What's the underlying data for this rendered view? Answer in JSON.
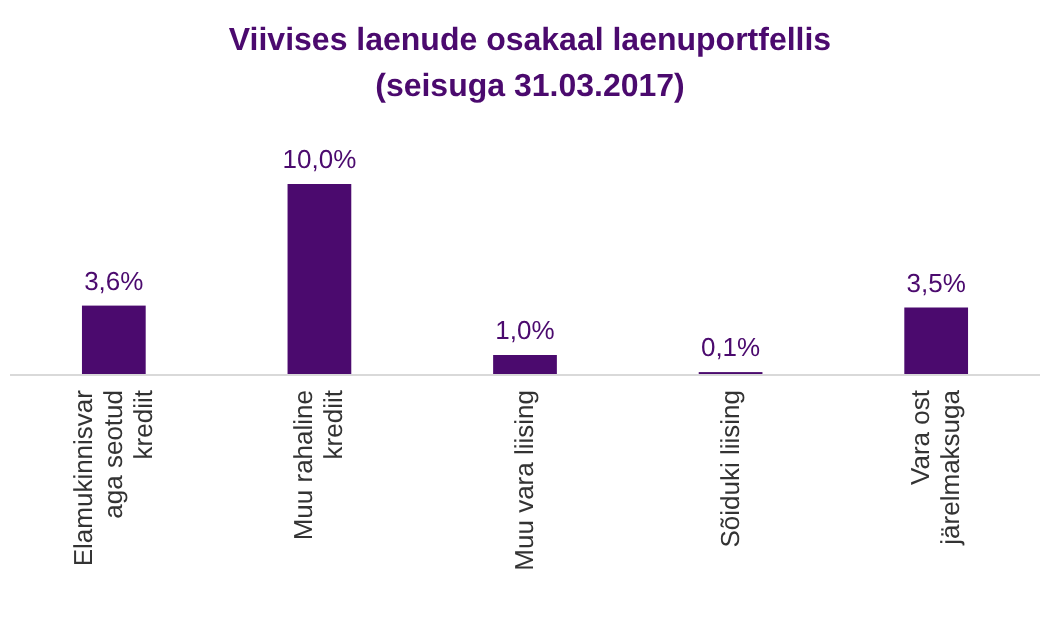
{
  "chart_data": {
    "type": "bar",
    "title": "Viivises laenude osakaal laenuportfellis",
    "subtitle": "(seisuga 31.03.2017)",
    "categories": [
      "Elamukinnisvaraga seotud krediit",
      "Muu rahaline krediit",
      "Muu vara liising",
      "Sõiduki liising",
      "Vara ost järelmaksuga"
    ],
    "values": [
      3.6,
      10.0,
      1.0,
      0.1,
      3.5
    ],
    "value_labels": [
      "3,6%",
      "10,0%",
      "1,0%",
      "0,1%",
      "3,5%"
    ],
    "color": "#4b0a6e"
  }
}
